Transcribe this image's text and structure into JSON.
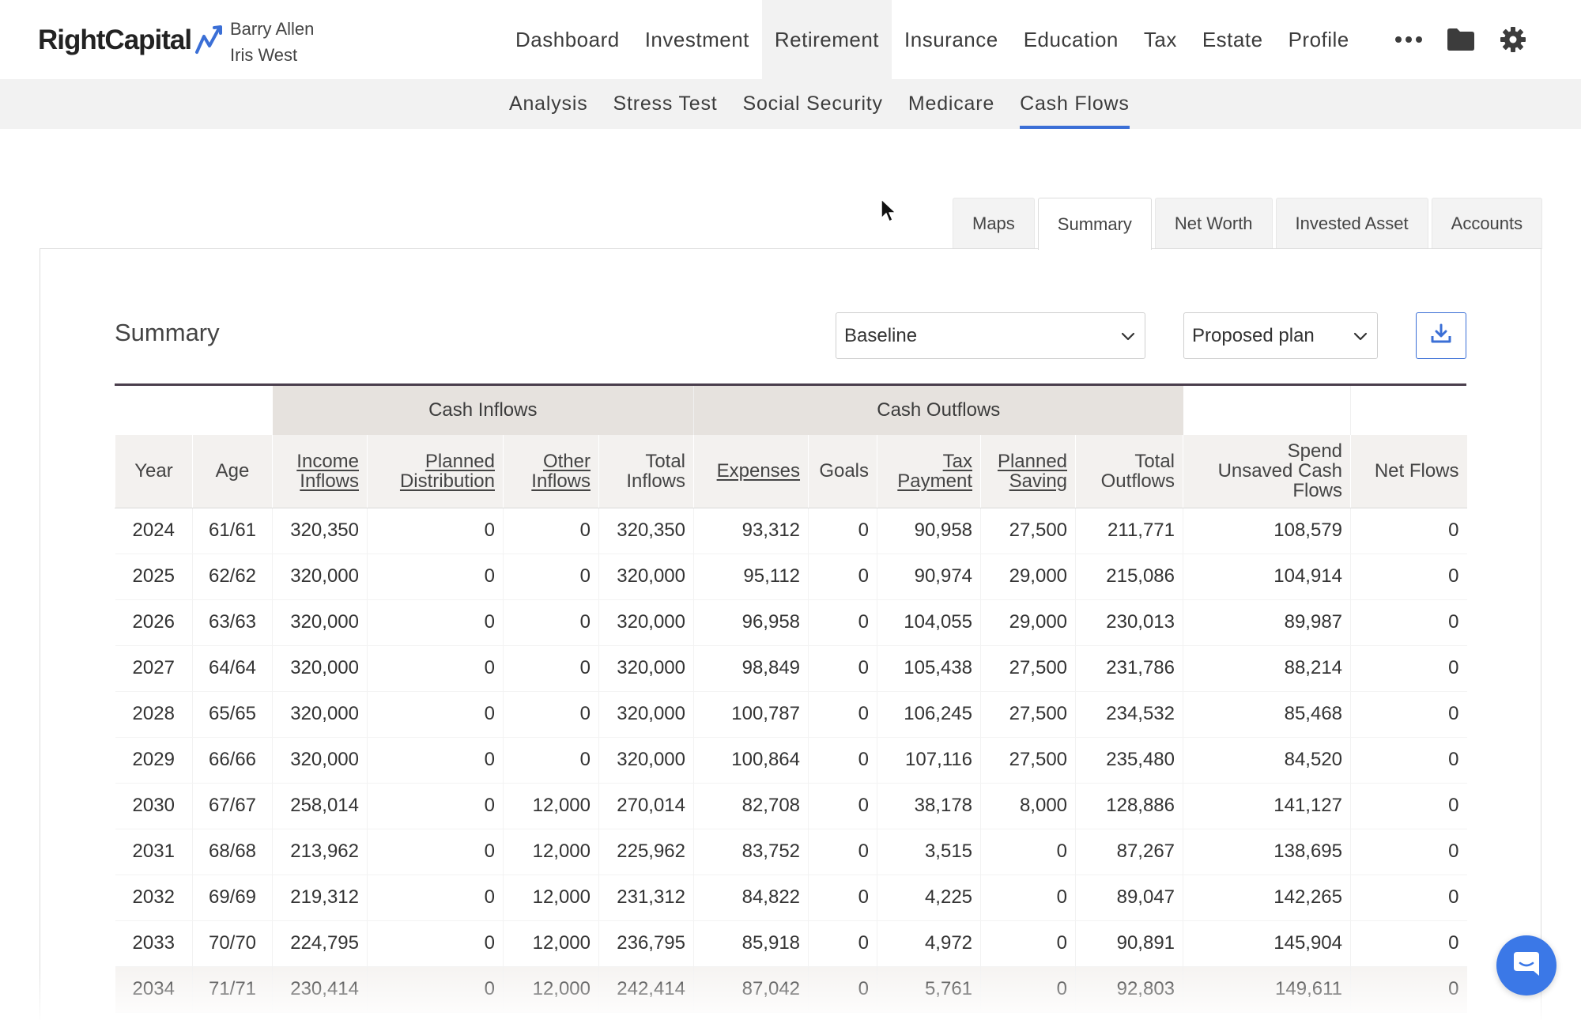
{
  "header": {
    "logo_text": "RightCapital",
    "clients": [
      "Barry Allen",
      "Iris West"
    ],
    "nav": [
      "Dashboard",
      "Investment",
      "Retirement",
      "Insurance",
      "Education",
      "Tax",
      "Estate",
      "Profile"
    ],
    "active_nav": "Retirement",
    "icons": [
      "more-icon",
      "folder-icon",
      "gear-icon"
    ],
    "accent_color": "#3b6fd6"
  },
  "subnav": {
    "items": [
      "Analysis",
      "Stress Test",
      "Social Security",
      "Medicare",
      "Cash Flows"
    ],
    "active": "Cash Flows"
  },
  "view_tabs": {
    "items": [
      "Maps",
      "Summary",
      "Net Worth",
      "Invested Asset",
      "Accounts"
    ],
    "active": "Summary"
  },
  "summary": {
    "title": "Summary",
    "scenario_select": "Baseline",
    "plan_select": "Proposed plan",
    "download_icon": "download-icon"
  },
  "table": {
    "groups": {
      "inflows": "Cash Inflows",
      "outflows": "Cash Outflows"
    },
    "headers": [
      [
        "Year"
      ],
      [
        "Age"
      ],
      [
        "Income",
        "Inflows"
      ],
      [
        "Planned",
        "Distribution"
      ],
      [
        "Other",
        "Inflows"
      ],
      [
        "Total",
        "Inflows"
      ],
      [
        "Expenses"
      ],
      [
        "Goals"
      ],
      [
        "Tax",
        "Payment"
      ],
      [
        "Planned",
        "Saving"
      ],
      [
        "Total",
        "Outflows"
      ],
      [
        "Spend",
        "Unsaved Cash",
        "Flows"
      ],
      [
        "Net Flows"
      ]
    ],
    "rows": [
      [
        "2024",
        "61/61",
        "320,350",
        "0",
        "0",
        "320,350",
        "93,312",
        "0",
        "90,958",
        "27,500",
        "211,771",
        "108,579",
        "0"
      ],
      [
        "2025",
        "62/62",
        "320,000",
        "0",
        "0",
        "320,000",
        "95,112",
        "0",
        "90,974",
        "29,000",
        "215,086",
        "104,914",
        "0"
      ],
      [
        "2026",
        "63/63",
        "320,000",
        "0",
        "0",
        "320,000",
        "96,958",
        "0",
        "104,055",
        "29,000",
        "230,013",
        "89,987",
        "0"
      ],
      [
        "2027",
        "64/64",
        "320,000",
        "0",
        "0",
        "320,000",
        "98,849",
        "0",
        "105,438",
        "27,500",
        "231,786",
        "88,214",
        "0"
      ],
      [
        "2028",
        "65/65",
        "320,000",
        "0",
        "0",
        "320,000",
        "100,787",
        "0",
        "106,245",
        "27,500",
        "234,532",
        "85,468",
        "0"
      ],
      [
        "2029",
        "66/66",
        "320,000",
        "0",
        "0",
        "320,000",
        "100,864",
        "0",
        "107,116",
        "27,500",
        "235,480",
        "84,520",
        "0"
      ],
      [
        "2030",
        "67/67",
        "258,014",
        "0",
        "12,000",
        "270,014",
        "82,708",
        "0",
        "38,178",
        "8,000",
        "128,886",
        "141,127",
        "0"
      ],
      [
        "2031",
        "68/68",
        "213,962",
        "0",
        "12,000",
        "225,962",
        "83,752",
        "0",
        "3,515",
        "0",
        "87,267",
        "138,695",
        "0"
      ],
      [
        "2032",
        "69/69",
        "219,312",
        "0",
        "12,000",
        "231,312",
        "84,822",
        "0",
        "4,225",
        "0",
        "89,047",
        "142,265",
        "0"
      ],
      [
        "2033",
        "70/70",
        "224,795",
        "0",
        "12,000",
        "236,795",
        "85,918",
        "0",
        "4,972",
        "0",
        "90,891",
        "145,904",
        "0"
      ],
      [
        "2034",
        "71/71",
        "230,414",
        "0",
        "12,000",
        "242,414",
        "87,042",
        "0",
        "5,761",
        "0",
        "92,803",
        "149,611",
        "0"
      ]
    ]
  },
  "chat": {
    "icon": "chat-icon"
  }
}
